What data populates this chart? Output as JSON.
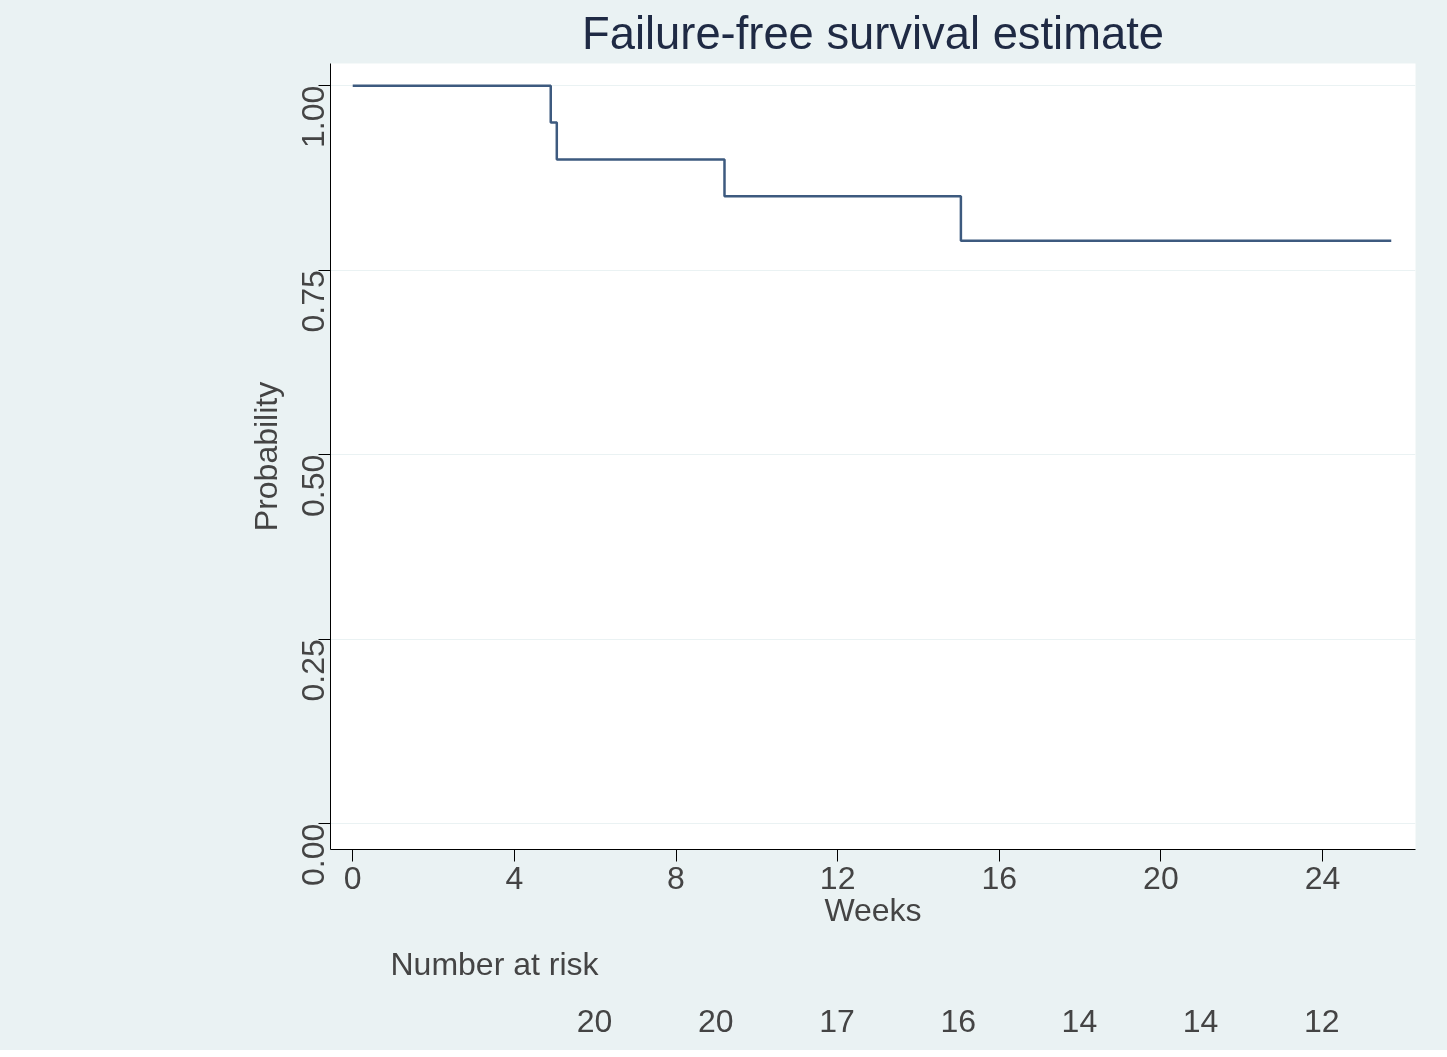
{
  "chart_data": {
    "type": "step",
    "title": "Failure-free survival estimate",
    "xlabel": "Weeks",
    "ylabel": "Probability",
    "x": [
      0,
      4.9,
      5.05,
      9.2,
      15.05,
      25.7
    ],
    "series": [
      {
        "color": "#3d5a7f",
        "values": [
          1.0,
          0.95,
          0.9,
          0.85,
          0.79,
          0.79
        ]
      }
    ],
    "xlim": [
      -0.55,
      26.3
    ],
    "xticks": [
      0,
      4,
      8,
      12,
      16,
      20,
      24
    ],
    "ylim": [
      -0.035,
      1.03
    ],
    "yticks": [
      {
        "value": 0,
        "label": "0.00"
      },
      {
        "value": 0.25,
        "label": "0.25"
      },
      {
        "value": 0.5,
        "label": "0.50"
      },
      {
        "value": 0.75,
        "label": "0.75"
      },
      {
        "value": 1,
        "label": "1.00"
      }
    ],
    "grid": "y",
    "line_style": "solid",
    "annotations": [
      "Number at risk",
      "20",
      "20",
      "17",
      "16",
      "14",
      "14",
      "12"
    ]
  }
}
